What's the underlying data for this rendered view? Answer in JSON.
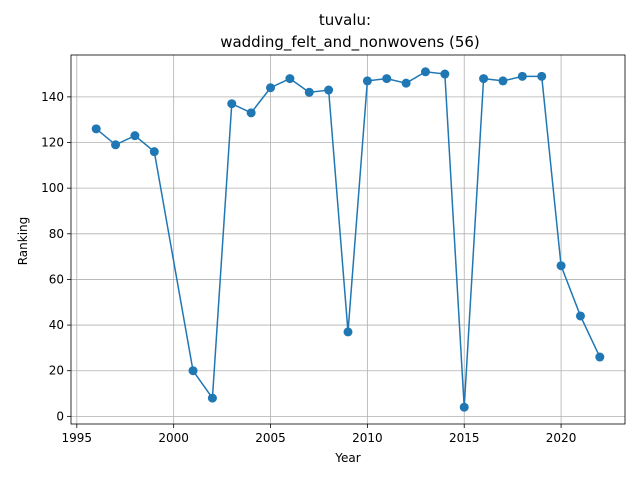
{
  "chart_data": {
    "type": "line",
    "title_line1": "tuvalu:",
    "title_line2": "wadding_felt_and_nonwovens (56)",
    "xlabel": "Year",
    "ylabel": "Ranking",
    "xlim": [
      1994.7,
      2023.3
    ],
    "ylim": [
      -3.35,
      158.35
    ],
    "xticks": [
      1995,
      2000,
      2005,
      2010,
      2015,
      2020
    ],
    "yticks": [
      0,
      20,
      40,
      60,
      80,
      100,
      120,
      140
    ],
    "grid": true,
    "color": "#1f77b4",
    "series": [
      {
        "x": [
          1996,
          1997,
          1998,
          1999,
          2001,
          2002,
          2003,
          2004,
          2005,
          2006,
          2007,
          2008,
          2009,
          2010,
          2011,
          2012,
          2013,
          2014,
          2015,
          2016,
          2017,
          2018,
          2019,
          2020,
          2021,
          2022
        ],
        "y": [
          126,
          119,
          123,
          116,
          20,
          8,
          137,
          133,
          144,
          148,
          142,
          143,
          37,
          147,
          148,
          146,
          151,
          150,
          4,
          148,
          147,
          149,
          149,
          66,
          44,
          26
        ]
      }
    ]
  }
}
